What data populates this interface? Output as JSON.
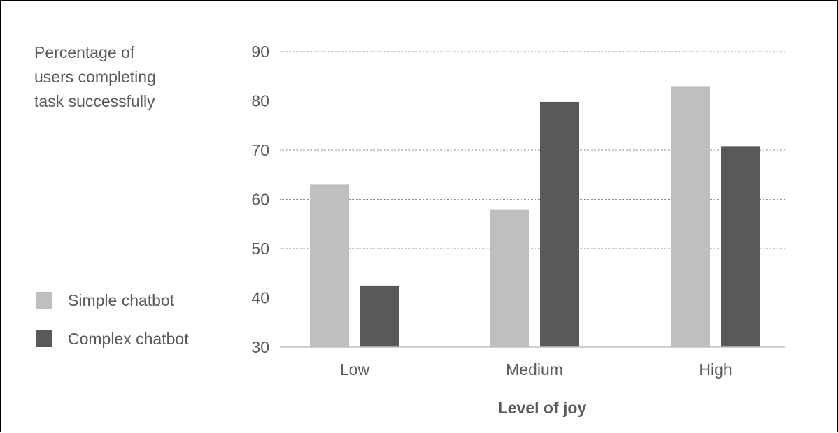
{
  "chart_data": {
    "type": "bar",
    "ylabel_lines": [
      "Percentage of",
      "users completing",
      "task successfully"
    ],
    "xlabel": "Level of joy",
    "categories": [
      "Low",
      "Medium",
      "High"
    ],
    "series": [
      {
        "name": "Simple chatbot",
        "values": [
          63,
          58,
          83
        ],
        "color": "#bfbfbf"
      },
      {
        "name": "Complex chatbot",
        "values": [
          42.5,
          79.8,
          70.8
        ],
        "color": "#595959"
      }
    ],
    "ylim": [
      30,
      90
    ],
    "yticks": [
      30,
      40,
      50,
      60,
      70,
      80,
      90
    ],
    "grid": true,
    "legend_position": "left"
  }
}
